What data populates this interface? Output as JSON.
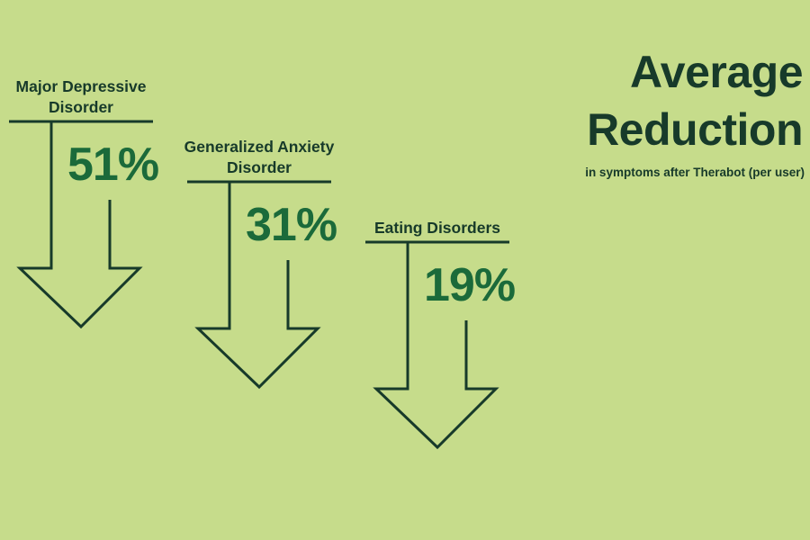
{
  "chart_data": {
    "type": "bar",
    "title_lines": [
      "Average",
      "Reduction"
    ],
    "subtitle": "in symptoms after Therabot (per user)",
    "categories": [
      [
        "Major Depressive",
        "Disorder"
      ],
      [
        "Generalized Anxiety",
        "Disorder"
      ],
      [
        "Eating Disorders"
      ]
    ],
    "values": [
      51,
      31,
      19
    ],
    "value_labels": [
      "51%",
      "31%",
      "19%"
    ],
    "unit": "%"
  },
  "colors": {
    "background": "#c6dc8b",
    "text": "#173a2a",
    "value": "#1b6a3a",
    "arrow": "#173a2a"
  }
}
